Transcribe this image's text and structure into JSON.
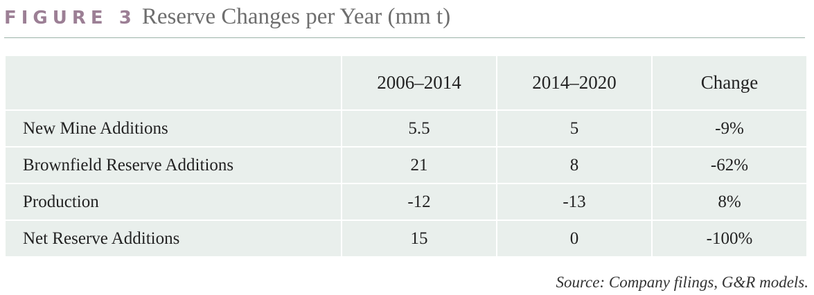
{
  "figure": {
    "label": "FIGURE 3",
    "title": "Reserve Changes per Year (mm t)"
  },
  "source": "Source: Company filings, G&R models.",
  "colors": {
    "label": "#9c7f95",
    "title": "#6e6e6e",
    "rule": "#9bb3a9",
    "table_background": "#e9efec"
  },
  "chart_data": {
    "type": "table",
    "title": "Reserve Changes per Year (mm t)",
    "columns": [
      "",
      "2006–2014",
      "2014–2020",
      "Change"
    ],
    "rows": [
      {
        "label": "New Mine Additions",
        "values": [
          "5.5",
          "5",
          "-9%"
        ]
      },
      {
        "label": "Brownfield Reserve Additions",
        "values": [
          "21",
          "8",
          "-62%"
        ]
      },
      {
        "label": "Production",
        "values": [
          "-12",
          "-13",
          "8%"
        ]
      },
      {
        "label": "Net Reserve Additions",
        "values": [
          "15",
          "0",
          "-100%"
        ]
      }
    ]
  }
}
